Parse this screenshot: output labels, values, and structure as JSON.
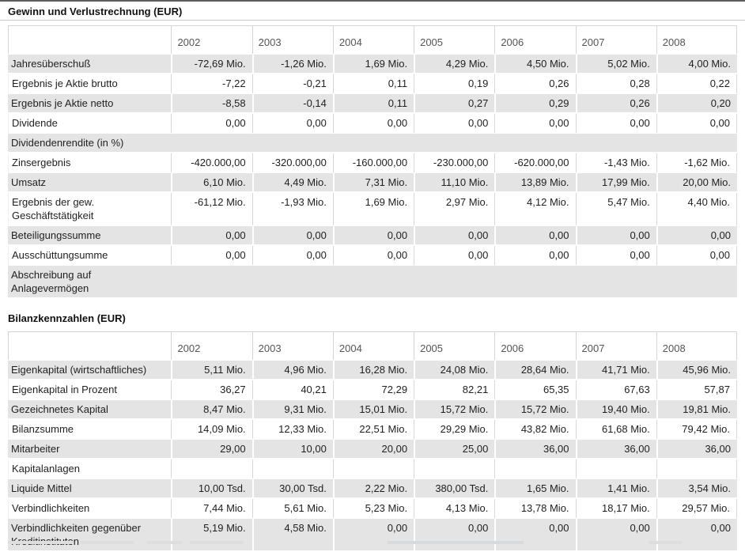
{
  "colors": {
    "row_alt_background": "#e4e4e4",
    "cell_border": "#d6d6d6",
    "year_header_text": "#555555",
    "body_text": "#1f1f1f"
  },
  "sections": [
    {
      "title": "Gewinn und Verlustrechnung (EUR)",
      "years": [
        "2002",
        "2003",
        "2004",
        "2005",
        "2006",
        "2007",
        "2008"
      ],
      "rows": [
        {
          "label": "Jahresüberschuß",
          "values": [
            "-72,69 Mio.",
            "-1,26 Mio.",
            "1,69 Mio.",
            "4,29 Mio.",
            "4,50 Mio.",
            "5,02 Mio.",
            "4,00 Mio."
          ]
        },
        {
          "label": "Ergebnis je Aktie brutto",
          "values": [
            "-7,22",
            "-0,21",
            "0,11",
            "0,19",
            "0,26",
            "0,28",
            "0,22"
          ]
        },
        {
          "label": "Ergebnis je Aktie netto",
          "values": [
            "-8,58",
            "-0,14",
            "0,11",
            "0,27",
            "0,29",
            "0,26",
            "0,20"
          ]
        },
        {
          "label": "Dividende",
          "values": [
            "0,00",
            "0,00",
            "0,00",
            "0,00",
            "0,00",
            "0,00",
            "0,00"
          ]
        },
        {
          "label": "Dividendenrendite (in %)",
          "full_width": true,
          "values": null
        },
        {
          "label": "Zinsergebnis",
          "values": [
            "-420.000,00",
            "-320.000,00",
            "-160.000,00",
            "-230.000,00",
            "-620.000,00",
            "-1,43 Mio.",
            "-1,62 Mio."
          ]
        },
        {
          "label": "Umsatz",
          "values": [
            "6,10 Mio.",
            "4,49 Mio.",
            "7,31 Mio.",
            "11,10 Mio.",
            "13,89 Mio.",
            "17,99 Mio.",
            "20,00 Mio."
          ]
        },
        {
          "label": "Ergebnis der gew. Geschäftstätigkeit",
          "values": [
            "-61,12 Mio.",
            "-1,93 Mio.",
            "1,69 Mio.",
            "2,97 Mio.",
            "4,12 Mio.",
            "5,47 Mio.",
            "4,40 Mio."
          ]
        },
        {
          "label": "Beteiligungssumme",
          "values": [
            "0,00",
            "0,00",
            "0,00",
            "0,00",
            "0,00",
            "0,00",
            "0,00"
          ]
        },
        {
          "label": "Ausschüttungsumme",
          "values": [
            "0,00",
            "0,00",
            "0,00",
            "0,00",
            "0,00",
            "0,00",
            "0,00"
          ]
        },
        {
          "label": "Abschreibung auf Anlagevermögen",
          "full_width": true,
          "values": null
        }
      ]
    },
    {
      "title": "Bilanzkennzahlen (EUR)",
      "years": [
        "2002",
        "2003",
        "2004",
        "2005",
        "2006",
        "2007",
        "2008"
      ],
      "rows": [
        {
          "label": "Eigenkapital (wirtschaftliches)",
          "values": [
            "5,11 Mio.",
            "4,96 Mio.",
            "16,28 Mio.",
            "24,08 Mio.",
            "28,64 Mio.",
            "41,71 Mio.",
            "45,96 Mio."
          ]
        },
        {
          "label": "Eigenkapital in Prozent",
          "values": [
            "36,27",
            "40,21",
            "72,29",
            "82,21",
            "65,35",
            "67,63",
            "57,87"
          ]
        },
        {
          "label": "Gezeichnetes Kapital",
          "values": [
            "8,47 Mio.",
            "9,31 Mio.",
            "15,01 Mio.",
            "15,72 Mio.",
            "15,72 Mio.",
            "19,40 Mio.",
            "19,81 Mio."
          ]
        },
        {
          "label": "Bilanzsumme",
          "values": [
            "14,09 Mio.",
            "12,33 Mio.",
            "22,51 Mio.",
            "29,29 Mio.",
            "43,82 Mio.",
            "61,68 Mio.",
            "79,42 Mio."
          ]
        },
        {
          "label": "Mitarbeiter",
          "values": [
            "29,00",
            "10,00",
            "20,00",
            "25,00",
            "36,00",
            "36,00",
            "36,00"
          ]
        },
        {
          "label": "Kapitalanlagen",
          "values": [
            "",
            "",
            "",
            "",
            "",
            "",
            ""
          ]
        },
        {
          "label": "Liquide Mittel",
          "values": [
            "10,00 Tsd.",
            "30,00 Tsd.",
            "2,22 Mio.",
            "380,00 Tsd.",
            "1,65 Mio.",
            "1,41 Mio.",
            "3,54 Mio."
          ]
        },
        {
          "label": "Verbindlichkeiten",
          "values": [
            "7,44 Mio.",
            "5,61 Mio.",
            "5,23 Mio.",
            "4,13 Mio.",
            "13,78 Mio.",
            "18,17 Mio.",
            "29,57 Mio."
          ]
        },
        {
          "label": "Verbindlichkeiten gegenüber Kreditinstituten",
          "values": [
            "5,19 Mio.",
            "4,58 Mio.",
            "0,00",
            "0,00",
            "0,00",
            "0,00",
            "0,00"
          ]
        }
      ]
    }
  ]
}
